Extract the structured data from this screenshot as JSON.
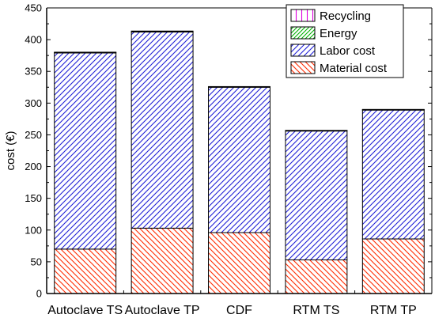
{
  "chart_data": {
    "type": "bar",
    "stacked": true,
    "title": "",
    "xlabel": "",
    "ylabel": "cost (€)",
    "ylim": [
      0,
      450
    ],
    "yticks": [
      0,
      50,
      100,
      150,
      200,
      250,
      300,
      350,
      400,
      450
    ],
    "grid": false,
    "legend_position": "top-right",
    "categories": [
      "Autoclave TS",
      "Autoclave TP",
      "CDF",
      "RTM TS",
      "RTM TP"
    ],
    "series": [
      {
        "name": "Material cost",
        "color": "#ff2a00",
        "hatch": "diagonal-down",
        "values": [
          70,
          103,
          96,
          53,
          86
        ]
      },
      {
        "name": "Labor cost",
        "color": "#1f1fd6",
        "hatch": "diagonal-up",
        "values": [
          309,
          309,
          229,
          203,
          203
        ]
      },
      {
        "name": "Energy",
        "color": "#00b000",
        "hatch": "diagonal-up-dense",
        "values": [
          0.5,
          0.8,
          0.3,
          0.3,
          0.3
        ]
      },
      {
        "name": "Recycling",
        "color": "#e000e0",
        "hatch": "vertical",
        "values": [
          0.2,
          0.3,
          0.2,
          0.2,
          0.2
        ]
      }
    ],
    "legend_order": [
      "Recycling",
      "Energy",
      "Labor cost",
      "Material cost"
    ]
  }
}
